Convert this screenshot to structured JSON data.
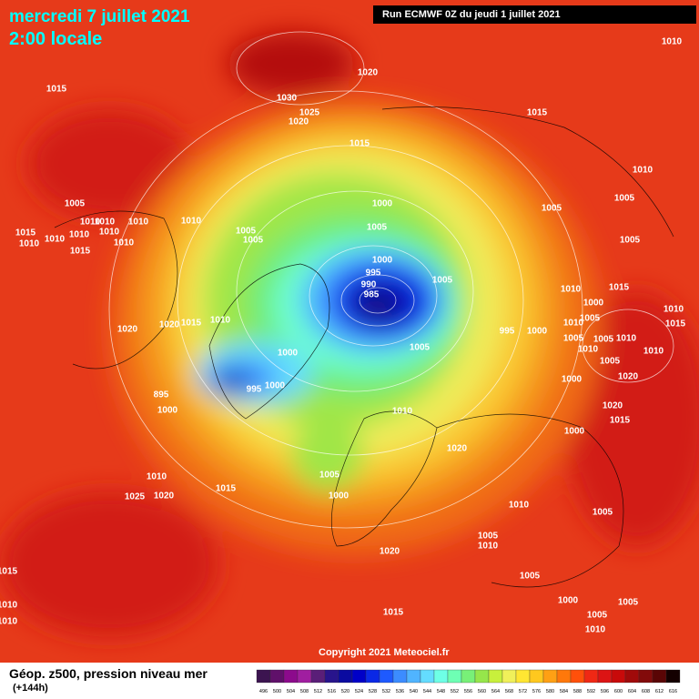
{
  "header": {
    "date": "mercredi 7 juillet 2021",
    "time": "2:00 locale",
    "run": "Run ECMWF 0Z du jeudi 1 juillet 2021"
  },
  "copyright": "Copyright 2021 Meteociel.fr",
  "footer": {
    "title": "Géop. z500, pression niveau mer",
    "lead": "(+144h)"
  },
  "legend": {
    "levels": [
      496,
      500,
      504,
      508,
      512,
      516,
      520,
      524,
      528,
      532,
      536,
      540,
      544,
      548,
      552,
      556,
      560,
      564,
      568,
      572,
      576,
      580,
      584,
      588,
      592,
      596,
      600,
      604,
      608,
      612,
      616
    ],
    "colors": [
      "#3c1450",
      "#60106a",
      "#8c0a8c",
      "#a01ea0",
      "#5a1e78",
      "#28148c",
      "#0a0aa0",
      "#0000c8",
      "#0a28e6",
      "#1e5aff",
      "#3c8cff",
      "#50b4ff",
      "#64dcff",
      "#6effe6",
      "#6effb4",
      "#78f078",
      "#96e64b",
      "#c8f03c",
      "#f0f05a",
      "#ffe632",
      "#ffc81e",
      "#ffa014",
      "#ff780a",
      "#ff500a",
      "#f02814",
      "#dc1414",
      "#c80a0a",
      "#a00a0a",
      "#820a0a",
      "#5a0505",
      "#140000"
    ]
  },
  "isobar_labels": [
    1010,
    1020,
    1015,
    1030,
    1025,
    1020,
    1015,
    1015,
    1010,
    1005,
    1005,
    1005,
    1000,
    1010,
    1010,
    1010,
    1010,
    1015,
    1010,
    1010,
    1005,
    1005,
    1005,
    1010,
    1010,
    1010,
    1015,
    1005,
    1000,
    995,
    1005,
    990,
    985,
    1010,
    1015,
    1000,
    1010,
    1020,
    1020,
    1015,
    1010,
    995,
    1000,
    1010,
    1005,
    1015,
    1005,
    1000,
    1005,
    1010,
    1005,
    1010,
    1010,
    1005,
    1000,
    995,
    895,
    1000,
    1000,
    1020,
    1010,
    1020,
    1015,
    1000,
    1020,
    1010,
    1005,
    1015,
    1025,
    1020,
    1000,
    1010,
    1005,
    1005,
    1010,
    1020,
    1015,
    1005,
    1000,
    1005,
    1010,
    1015,
    1005,
    1010,
    1010
  ]
}
